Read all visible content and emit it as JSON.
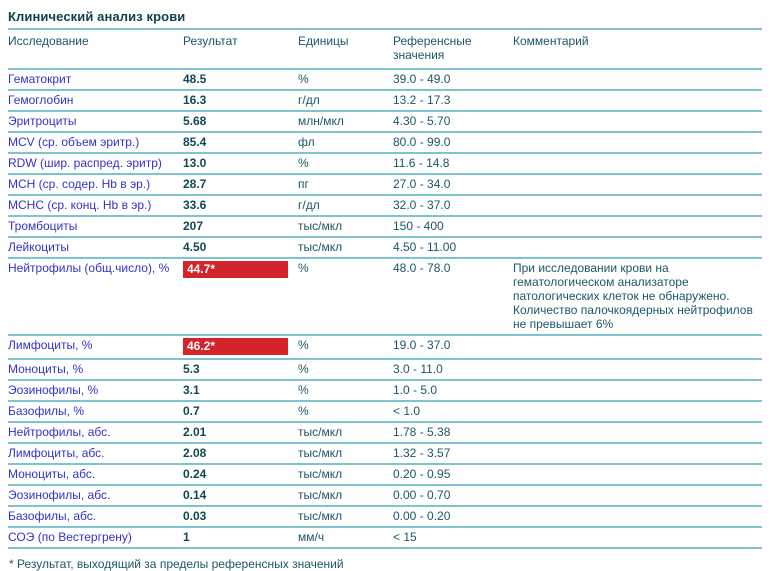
{
  "title": "Клинический анализ крови",
  "colors": {
    "line": "#7EC4CF",
    "title": "#123F4C",
    "text": "#1C566B",
    "value": "#114953",
    "blue": "#3232CE",
    "red": "#D3232B",
    "flag_text": "#FFFFFF",
    "bg": "#FFFFFF"
  },
  "table": {
    "headers": [
      "Исследование",
      "Результат",
      "Единицы",
      "Референсные значения",
      "Комментарий"
    ],
    "rows": [
      {
        "name": "Гематокрит",
        "result": "48.5",
        "flagged": false,
        "units": "%",
        "reference": "39.0 - 49.0",
        "comment": ""
      },
      {
        "name": "Гемоглобин",
        "result": "16.3",
        "flagged": false,
        "units": "г/дл",
        "reference": "13.2 - 17.3",
        "comment": ""
      },
      {
        "name": "Эритроциты",
        "result": "5.68",
        "flagged": false,
        "units": "млн/мкл",
        "reference": "4.30 - 5.70",
        "comment": ""
      },
      {
        "name": "MCV (ср. объем эритр.)",
        "result": "85.4",
        "flagged": false,
        "units": "фл",
        "reference": "80.0 - 99.0",
        "comment": ""
      },
      {
        "name": "RDW (шир. распред. эритр)",
        "result": "13.0",
        "flagged": false,
        "units": "%",
        "reference": "11.6 - 14.8",
        "comment": ""
      },
      {
        "name": "MCH (ср. содер. Hb в эр.)",
        "result": "28.7",
        "flagged": false,
        "units": "пг",
        "reference": "27.0 - 34.0",
        "comment": ""
      },
      {
        "name": "MCHC (ср. конц. Hb в эр.)",
        "result": "33.6",
        "flagged": false,
        "units": "г/дл",
        "reference": "32.0 - 37.0",
        "comment": ""
      },
      {
        "name": "Тромбоциты",
        "result": "207",
        "flagged": false,
        "units": "тыс/мкл",
        "reference": "150 - 400",
        "comment": ""
      },
      {
        "name": "Лейкоциты",
        "result": "4.50",
        "flagged": false,
        "units": "тыс/мкл",
        "reference": "4.50 - 11.00",
        "comment": ""
      },
      {
        "name": "Нейтрофилы (общ.число), %",
        "result": "44.7*",
        "flagged": true,
        "units": "%",
        "reference": "48.0 - 78.0",
        "comment": "При исследовании крови на гематологическом анализаторе патологических клеток не обнаружено. Количество палочкоядерных нейтрофилов не превышает 6%"
      },
      {
        "name": "Лимфоциты, %",
        "result": "46.2*",
        "flagged": true,
        "units": "%",
        "reference": "19.0 - 37.0",
        "comment": ""
      },
      {
        "name": "Моноциты, %",
        "result": "5.3",
        "flagged": false,
        "units": "%",
        "reference": "3.0 - 11.0",
        "comment": ""
      },
      {
        "name": "Эозинофилы, %",
        "result": "3.1",
        "flagged": false,
        "units": "%",
        "reference": "1.0 - 5.0",
        "comment": ""
      },
      {
        "name": "Базофилы, %",
        "result": "0.7",
        "flagged": false,
        "units": "%",
        "reference": "< 1.0",
        "comment": ""
      },
      {
        "name": "Нейтрофилы, абс.",
        "result": "2.01",
        "flagged": false,
        "units": "тыс/мкл",
        "reference": "1.78 - 5.38",
        "comment": ""
      },
      {
        "name": "Лимфоциты, абс.",
        "result": "2.08",
        "flagged": false,
        "units": "тыс/мкл",
        "reference": "1.32 - 3.57",
        "comment": ""
      },
      {
        "name": "Моноциты, абс.",
        "result": "0.24",
        "flagged": false,
        "units": "тыс/мкл",
        "reference": "0.20 - 0.95",
        "comment": ""
      },
      {
        "name": "Эозинофилы, абс.",
        "result": "0.14",
        "flagged": false,
        "units": "тыс/мкл",
        "reference": "0.00 - 0.70",
        "comment": ""
      },
      {
        "name": "Базофилы, абс.",
        "result": "0.03",
        "flagged": false,
        "units": "тыс/мкл",
        "reference": "0.00 - 0.20",
        "comment": ""
      },
      {
        "name": "СОЭ (по Вестергрену)",
        "result": "1",
        "flagged": false,
        "units": "мм/ч",
        "reference": "< 15",
        "comment": ""
      }
    ]
  },
  "footnote": "* Результат, выходящий за пределы референсных значений"
}
